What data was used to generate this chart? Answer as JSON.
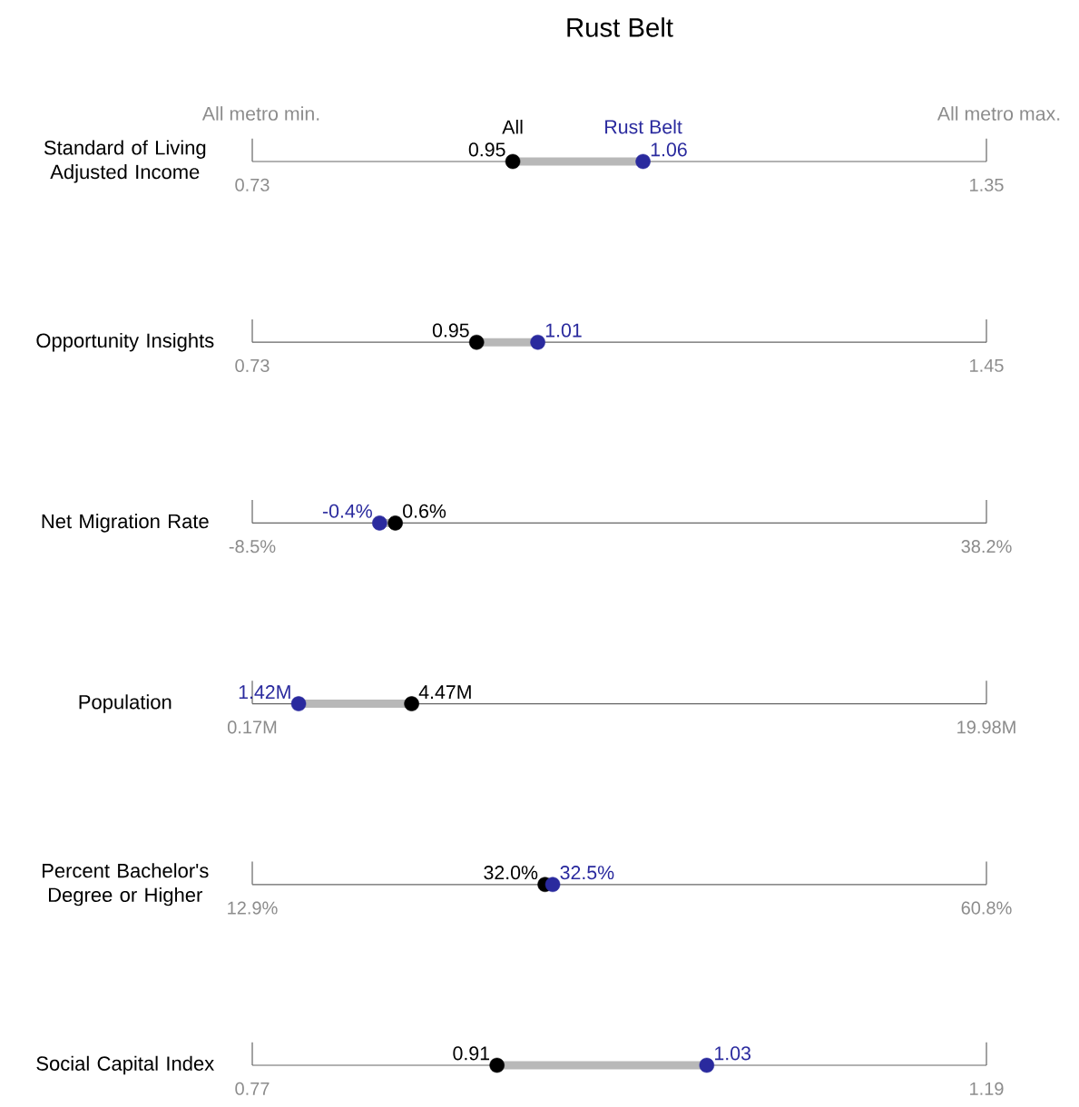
{
  "chart_data": [
    {
      "type": "scatter",
      "orientation": "horizontal",
      "marker": "circle",
      "title": "Rust Belt",
      "annotations": [
        "All metro min.",
        "All metro max."
      ],
      "categories": [
        "Standard of Living Adjusted Income"
      ],
      "xlim": [
        0.73,
        1.35
      ],
      "xticks": [
        0.73,
        1.35
      ],
      "series": [
        {
          "name": "All",
          "color": "#000000",
          "values": [
            0.95
          ],
          "value_labels": [
            "0.95"
          ]
        },
        {
          "name": "Rust Belt",
          "color": "#2a2a9e",
          "values": [
            1.06
          ],
          "value_labels": [
            "1.06"
          ]
        }
      ]
    },
    {
      "type": "scatter",
      "orientation": "horizontal",
      "marker": "circle",
      "categories": [
        "Opportunity Insights"
      ],
      "xlim": [
        0.73,
        1.45
      ],
      "xticks": [
        0.73,
        1.45
      ],
      "series": [
        {
          "color": "#000000",
          "values": [
            0.95
          ],
          "value_labels": [
            "0.95"
          ]
        },
        {
          "color": "#2a2a9e",
          "values": [
            1.01
          ],
          "value_labels": [
            "1.01"
          ]
        }
      ]
    },
    {
      "type": "scatter",
      "orientation": "horizontal",
      "marker": "circle",
      "categories": [
        "Net Migration Rate"
      ],
      "xlim": [
        -8.5,
        38.2
      ],
      "xticks": [
        {
          "value": -8.5,
          "label": "-8.5%"
        },
        {
          "value": 38.2,
          "label": "38.2%"
        }
      ],
      "series": [
        {
          "color": "#000000",
          "values": [
            0.6
          ],
          "value_labels": [
            "0.6%"
          ]
        },
        {
          "color": "#2a2a9e",
          "values": [
            -0.4
          ],
          "value_labels": [
            "-0.4%"
          ]
        }
      ]
    },
    {
      "type": "scatter",
      "orientation": "horizontal",
      "marker": "circle",
      "categories": [
        "Population"
      ],
      "xlim": [
        0.17,
        19.98
      ],
      "xticks": [
        {
          "value": 0.17,
          "label": "0.17M"
        },
        {
          "value": 19.98,
          "label": "19.98M"
        }
      ],
      "series": [
        {
          "color": "#000000",
          "values": [
            4.47
          ],
          "value_labels": [
            "4.47M"
          ]
        },
        {
          "color": "#2a2a9e",
          "values": [
            1.42
          ],
          "value_labels": [
            "1.42M"
          ]
        }
      ]
    },
    {
      "type": "scatter",
      "orientation": "horizontal",
      "marker": "circle",
      "categories": [
        "Percent Bachelor's Degree or Higher"
      ],
      "xlim": [
        12.9,
        60.8
      ],
      "xticks": [
        {
          "value": 12.9,
          "label": "12.9%"
        },
        {
          "value": 60.8,
          "label": "60.8%"
        }
      ],
      "series": [
        {
          "color": "#000000",
          "values": [
            32.0
          ],
          "value_labels": [
            "32.0%"
          ]
        },
        {
          "color": "#2a2a9e",
          "values": [
            32.5
          ],
          "value_labels": [
            "32.5%"
          ]
        }
      ]
    },
    {
      "type": "scatter",
      "orientation": "horizontal",
      "marker": "circle",
      "categories": [
        "Social Capital Index"
      ],
      "xlim": [
        0.77,
        1.19
      ],
      "xticks": [
        0.77,
        1.19
      ],
      "series": [
        {
          "color": "#000000",
          "values": [
            0.91
          ],
          "value_labels": [
            "0.91"
          ]
        },
        {
          "color": "#2a2a9e",
          "values": [
            1.03
          ],
          "value_labels": [
            "1.03"
          ]
        }
      ]
    }
  ]
}
